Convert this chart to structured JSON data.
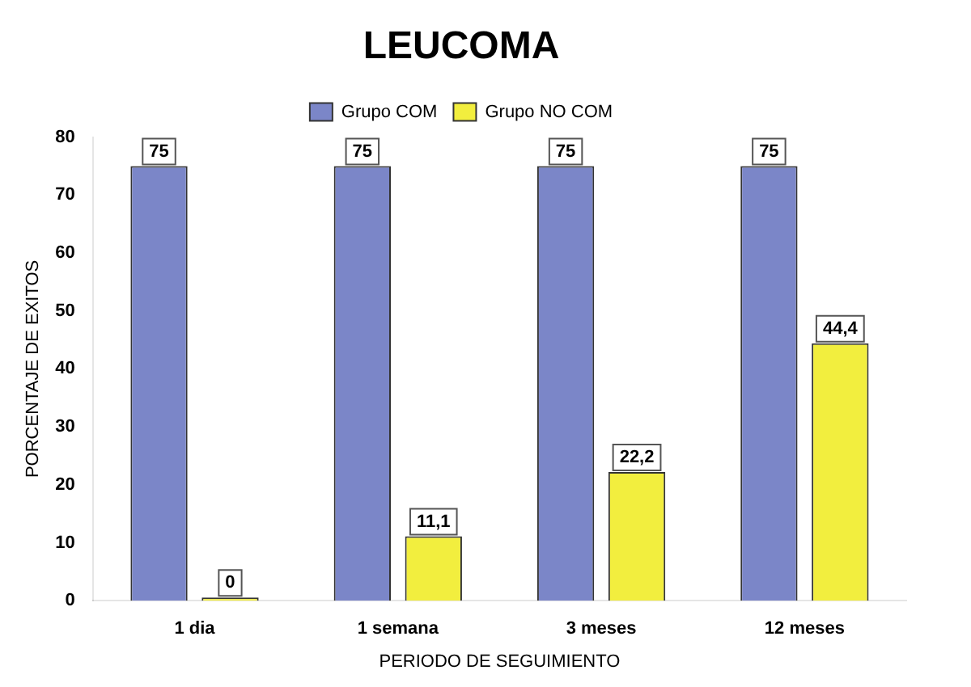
{
  "chart_data": {
    "type": "bar",
    "title": "LEUCOMA",
    "xlabel": "PERIODO DE SEGUIMIENTO",
    "ylabel": "PORCENTAJE DE EXITOS",
    "categories": [
      "1 dia",
      "1 semana",
      "3 meses",
      "12 meses"
    ],
    "series": [
      {
        "name": "Grupo COM",
        "color": "#7b86c8",
        "values": [
          75,
          75,
          75,
          75
        ],
        "value_labels": [
          "75",
          "75",
          "75",
          "75"
        ]
      },
      {
        "name": "Grupo NO COM",
        "color": "#f2ee3e",
        "values": [
          0,
          11.1,
          22.2,
          44.4
        ],
        "value_labels": [
          "0",
          "11,1",
          "22,2",
          "44,4"
        ]
      }
    ],
    "ylim": [
      0,
      80
    ],
    "yticks": [
      0,
      10,
      20,
      30,
      40,
      50,
      60,
      70,
      80
    ],
    "grid": false,
    "legend": "top"
  }
}
